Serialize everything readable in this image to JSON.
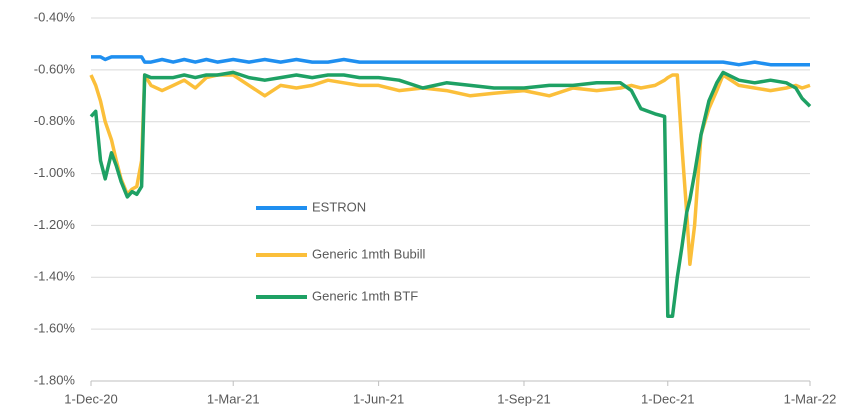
{
  "chart_data": {
    "type": "line",
    "x": [
      "2020-12-01",
      "2020-12-04",
      "2020-12-07",
      "2020-12-10",
      "2020-12-14",
      "2020-12-17",
      "2020-12-20",
      "2020-12-24",
      "2020-12-27",
      "2020-12-30",
      "2021-01-02",
      "2021-01-04",
      "2021-01-08",
      "2021-01-15",
      "2021-01-22",
      "2021-01-29",
      "2021-02-05",
      "2021-02-12",
      "2021-02-19",
      "2021-03-01",
      "2021-03-11",
      "2021-03-21",
      "2021-03-31",
      "2021-04-10",
      "2021-04-20",
      "2021-04-30",
      "2021-05-10",
      "2021-05-20",
      "2021-06-01",
      "2021-06-14",
      "2021-06-29",
      "2021-07-14",
      "2021-07-29",
      "2021-08-13",
      "2021-09-01",
      "2021-09-17",
      "2021-10-02",
      "2021-10-17",
      "2021-11-01",
      "2021-11-08",
      "2021-11-14",
      "2021-11-23",
      "2021-11-29",
      "2021-12-01",
      "2021-12-04",
      "2021-12-07",
      "2021-12-10",
      "2021-12-13",
      "2021-12-15",
      "2021-12-18",
      "2021-12-22",
      "2021-12-27",
      "2022-01-01",
      "2022-01-05",
      "2022-01-15",
      "2022-01-25",
      "2022-02-04",
      "2022-02-14",
      "2022-02-20",
      "2022-02-24",
      "2022-03-01"
    ],
    "series": [
      {
        "name": "ESTRON",
        "color": "#1f8ff0",
        "values": [
          -0.55,
          -0.55,
          -0.55,
          -0.56,
          -0.55,
          -0.55,
          -0.55,
          -0.55,
          -0.55,
          -0.55,
          -0.55,
          -0.57,
          -0.57,
          -0.56,
          -0.57,
          -0.56,
          -0.57,
          -0.56,
          -0.57,
          -0.56,
          -0.57,
          -0.56,
          -0.57,
          -0.56,
          -0.57,
          -0.57,
          -0.56,
          -0.57,
          -0.57,
          -0.57,
          -0.57,
          -0.57,
          -0.57,
          -0.57,
          -0.57,
          -0.57,
          -0.57,
          -0.57,
          -0.57,
          -0.57,
          -0.57,
          -0.57,
          -0.57,
          -0.57,
          -0.57,
          -0.57,
          -0.57,
          -0.57,
          -0.57,
          -0.57,
          -0.57,
          -0.57,
          -0.57,
          -0.57,
          -0.58,
          -0.57,
          -0.58,
          -0.58,
          -0.58,
          -0.58,
          -0.58
        ]
      },
      {
        "name": "Generic 1mth Bubill",
        "color": "#fbbf3a",
        "values": [
          -0.62,
          -0.66,
          -0.72,
          -0.8,
          -0.87,
          -0.95,
          -1.02,
          -1.08,
          -1.06,
          -1.05,
          -0.95,
          -0.62,
          -0.66,
          -0.68,
          -0.66,
          -0.64,
          -0.67,
          -0.63,
          -0.62,
          -0.62,
          -0.66,
          -0.7,
          -0.66,
          -0.67,
          -0.66,
          -0.64,
          -0.65,
          -0.66,
          -0.66,
          -0.68,
          -0.67,
          -0.68,
          -0.7,
          -0.69,
          -0.68,
          -0.7,
          -0.67,
          -0.68,
          -0.67,
          -0.66,
          -0.67,
          -0.66,
          -0.64,
          -0.63,
          -0.62,
          -0.62,
          -0.9,
          -1.15,
          -1.35,
          -1.2,
          -0.85,
          -0.75,
          -0.68,
          -0.62,
          -0.66,
          -0.67,
          -0.68,
          -0.67,
          -0.66,
          -0.67,
          -0.66
        ]
      },
      {
        "name": "Generic 1mth BTF",
        "color": "#1ea164",
        "values": [
          -0.78,
          -0.76,
          -0.95,
          -1.02,
          -0.92,
          -0.97,
          -1.03,
          -1.09,
          -1.07,
          -1.08,
          -1.05,
          -0.62,
          -0.63,
          -0.63,
          -0.63,
          -0.62,
          -0.63,
          -0.62,
          -0.62,
          -0.61,
          -0.63,
          -0.64,
          -0.63,
          -0.62,
          -0.63,
          -0.62,
          -0.62,
          -0.63,
          -0.63,
          -0.64,
          -0.67,
          -0.65,
          -0.66,
          -0.67,
          -0.67,
          -0.66,
          -0.66,
          -0.65,
          -0.65,
          -0.68,
          -0.75,
          -0.77,
          -0.78,
          -1.55,
          -1.55,
          -1.4,
          -1.28,
          -1.15,
          -1.1,
          -1.0,
          -0.85,
          -0.72,
          -0.65,
          -0.61,
          -0.64,
          -0.65,
          -0.64,
          -0.65,
          -0.67,
          -0.71,
          -0.74
        ]
      }
    ],
    "xlim": [
      "2020-12-01",
      "2022-03-01"
    ],
    "xticks": [
      {
        "value": "2020-12-01",
        "label": "1-Dec-20"
      },
      {
        "value": "2021-03-01",
        "label": "1-Mar-21"
      },
      {
        "value": "2021-06-01",
        "label": "1-Jun-21"
      },
      {
        "value": "2021-09-01",
        "label": "1-Sep-21"
      },
      {
        "value": "2021-12-01",
        "label": "1-Dec-21"
      },
      {
        "value": "2022-03-01",
        "label": "1-Mar-22"
      }
    ],
    "ylim": [
      -1.8,
      -0.4
    ],
    "yticks": [
      {
        "value": -1.8,
        "label": "-1.80%"
      },
      {
        "value": -1.6,
        "label": "-1.60%"
      },
      {
        "value": -1.4,
        "label": "-1.40%"
      },
      {
        "value": -1.2,
        "label": "-1.20%"
      },
      {
        "value": -1.0,
        "label": "-1.00%"
      },
      {
        "value": -0.8,
        "label": "-0.80%"
      },
      {
        "value": -0.6,
        "label": "-0.60%"
      },
      {
        "value": -0.4,
        "label": "-0.40%"
      }
    ],
    "grid": true,
    "legend": "center"
  }
}
